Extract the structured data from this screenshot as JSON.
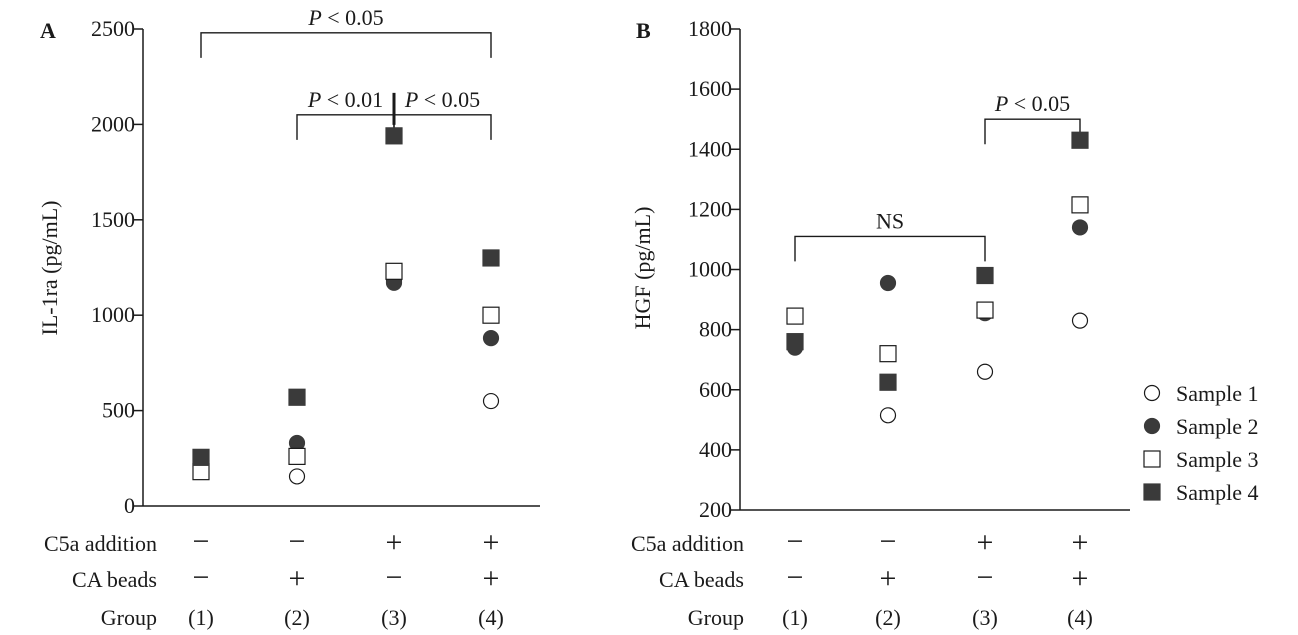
{
  "row_labels": [
    "C5a addition",
    "CA beads",
    "Group"
  ],
  "legend": [
    {
      "label": "Sample 1",
      "marker": "open-circle"
    },
    {
      "label": "Sample 2",
      "marker": "filled-circle"
    },
    {
      "label": "Sample 3",
      "marker": "open-square"
    },
    {
      "label": "Sample 4",
      "marker": "filled-square"
    }
  ],
  "chart_data": [
    {
      "type": "scatter",
      "panel_letter": "A",
      "ylabel": "IL-1ra (pg/mL)",
      "ylim": [
        0,
        2500
      ],
      "yticks": [
        0,
        500,
        1000,
        1500,
        2000,
        2500
      ],
      "groups": [
        {
          "label": "(1)",
          "c5a": "−",
          "beads": "−"
        },
        {
          "label": "(2)",
          "c5a": "−",
          "beads": "+"
        },
        {
          "label": "(3)",
          "c5a": "+",
          "beads": "−"
        },
        {
          "label": "(4)",
          "c5a": "+",
          "beads": "+"
        }
      ],
      "series": [
        {
          "name": "Sample 1",
          "values": [
            180,
            155,
            1180,
            550
          ]
        },
        {
          "name": "Sample 2",
          "values": [
            200,
            330,
            1170,
            880
          ]
        },
        {
          "name": "Sample 3",
          "values": [
            180,
            260,
            1230,
            1000
          ]
        },
        {
          "name": "Sample 4",
          "values": [
            255,
            570,
            1940,
            1300
          ]
        }
      ],
      "annotations": [
        {
          "text": "P < 0.05",
          "from": 0,
          "to": 3,
          "level": 2480
        },
        {
          "text": "P < 0.01",
          "from": 1,
          "to": 2,
          "level": 2050
        },
        {
          "text": "P < 0.05",
          "from": 2,
          "to": 3,
          "level": 2050
        }
      ]
    },
    {
      "type": "scatter",
      "panel_letter": "B",
      "ylabel": "HGF (pg/mL)",
      "ylim": [
        200,
        1800
      ],
      "yticks": [
        200,
        400,
        600,
        800,
        1000,
        1200,
        1400,
        1600,
        1800
      ],
      "groups": [
        {
          "label": "(1)",
          "c5a": "−",
          "beads": "−"
        },
        {
          "label": "(2)",
          "c5a": "−",
          "beads": "+"
        },
        {
          "label": "(3)",
          "c5a": "+",
          "beads": "−"
        },
        {
          "label": "(4)",
          "c5a": "+",
          "beads": "+"
        }
      ],
      "series": [
        {
          "name": "Sample 1",
          "values": [
            745,
            515,
            660,
            830
          ]
        },
        {
          "name": "Sample 2",
          "values": [
            740,
            955,
            855,
            1140
          ]
        },
        {
          "name": "Sample 3",
          "values": [
            845,
            720,
            865,
            1215
          ]
        },
        {
          "name": "Sample 4",
          "values": [
            760,
            625,
            980,
            1430
          ]
        }
      ],
      "annotations": [
        {
          "text": "NS",
          "from": 0,
          "to": 2,
          "level": 1110
        },
        {
          "text": "P < 0.05",
          "from": 2,
          "to": 3,
          "level": 1500
        }
      ]
    }
  ]
}
